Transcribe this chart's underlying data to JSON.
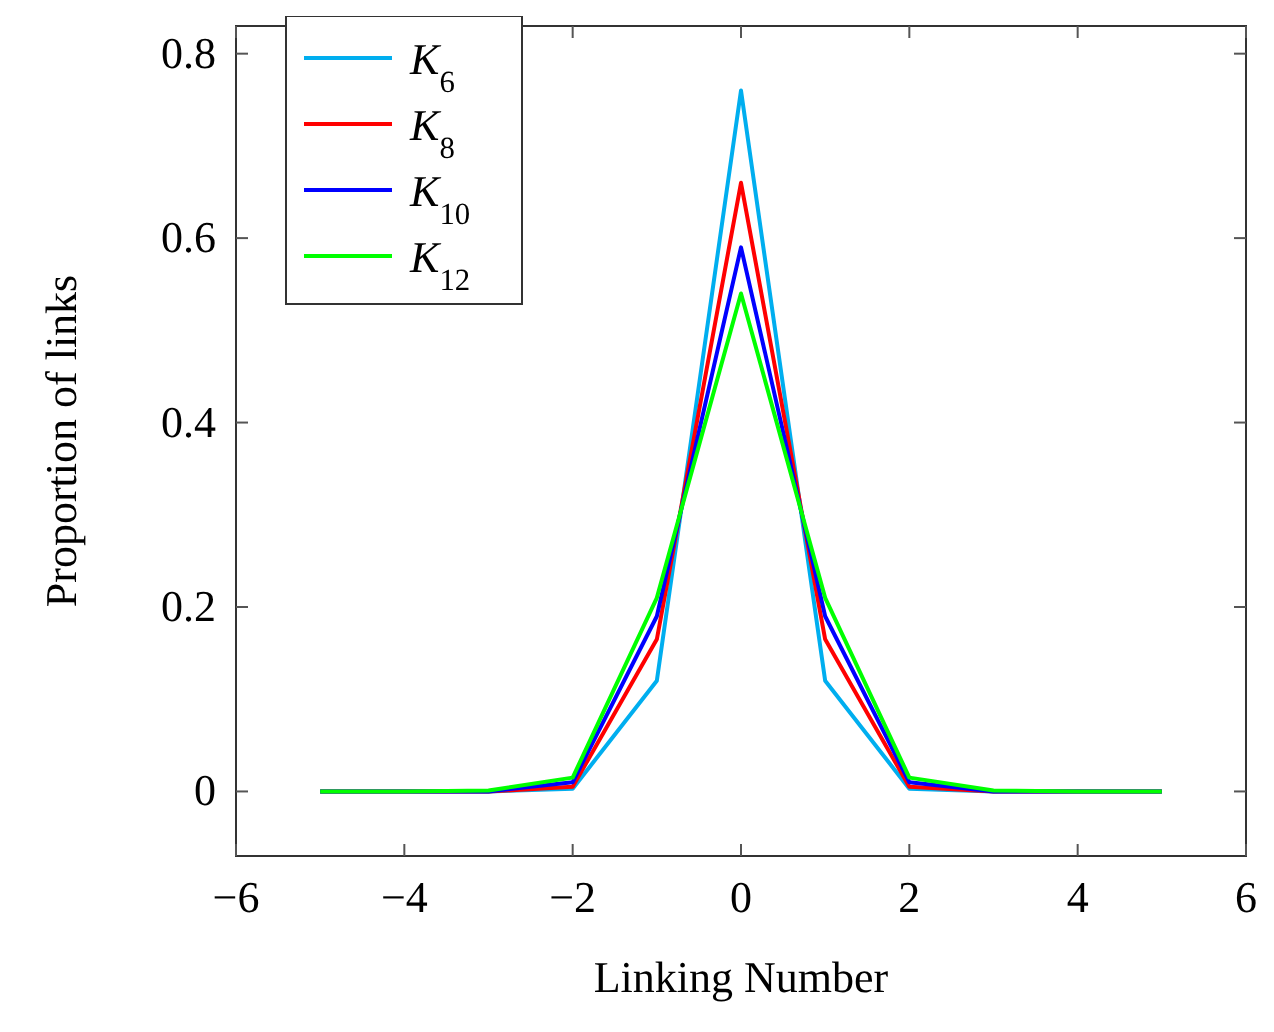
{
  "chart_data": {
    "type": "line",
    "xlabel": "Linking Number",
    "ylabel": "Proportion of links",
    "x": [
      -5,
      -4,
      -3,
      -2,
      -1,
      0,
      1,
      2,
      3,
      4,
      5
    ],
    "xlim": [
      -6,
      6
    ],
    "xticks": [
      {
        "value": -6,
        "label": "−6"
      },
      {
        "value": -4,
        "label": "−4"
      },
      {
        "value": -2,
        "label": "−2"
      },
      0,
      2,
      4,
      6
    ],
    "ylim": [
      -0.07,
      0.83
    ],
    "yticks": [
      0,
      0.2,
      0.4,
      0.6,
      0.8
    ],
    "legend": "top left",
    "grid": false,
    "marker": "none",
    "line_style": "solid",
    "series": [
      {
        "name": "K$_{6}$",
        "color": "#00aeef",
        "values": [
          0,
          0,
          0,
          0.003,
          0.12,
          0.76,
          0.12,
          0.003,
          0,
          0,
          0
        ]
      },
      {
        "name": "K$_{8}$",
        "color": "#ff0000",
        "values": [
          0,
          0,
          0,
          0.005,
          0.165,
          0.66,
          0.165,
          0.005,
          0,
          0,
          0
        ]
      },
      {
        "name": "K$_{10}$",
        "color": "#0000ff",
        "values": [
          0,
          0,
          0,
          0.01,
          0.19,
          0.59,
          0.19,
          0.01,
          0,
          0,
          0
        ]
      },
      {
        "name": "K$_{12}$",
        "color": "#00ff00",
        "values": [
          0,
          0,
          0.001,
          0.015,
          0.21,
          0.54,
          0.21,
          0.015,
          0.001,
          0,
          0
        ]
      }
    ]
  }
}
